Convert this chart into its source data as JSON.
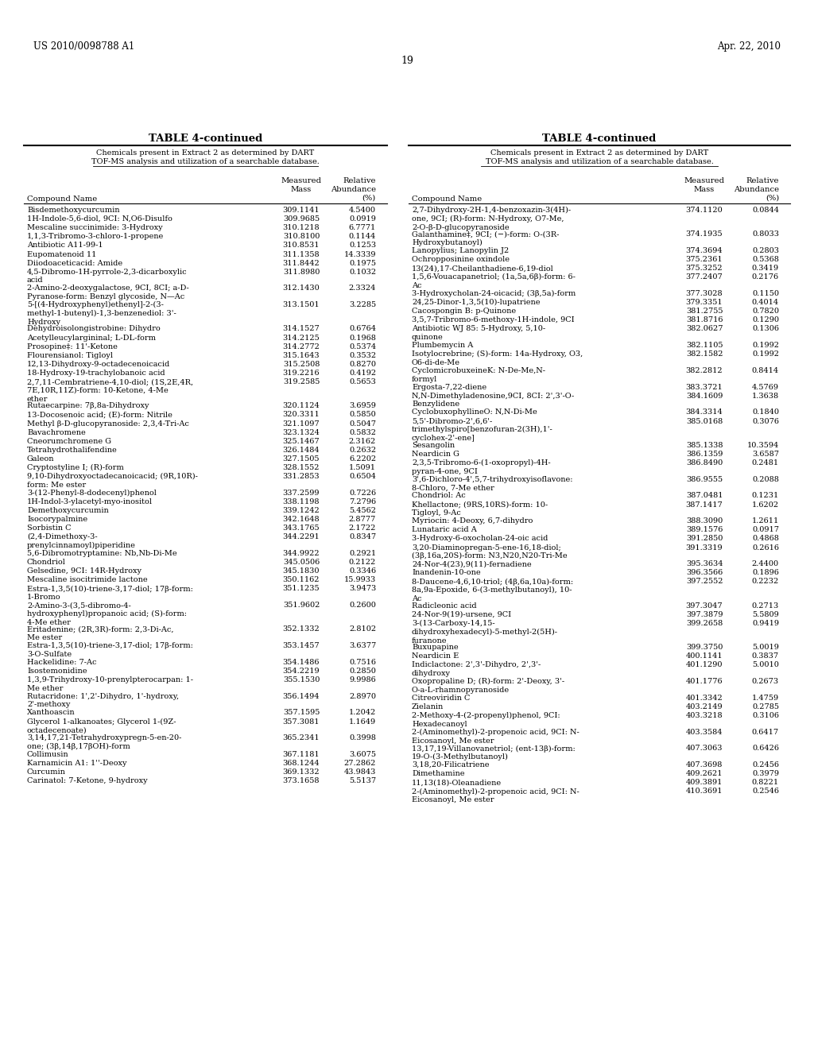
{
  "header_left": "US 2010/0098788 A1",
  "header_right": "Apr. 22, 2010",
  "page_number": "19",
  "table_title": "TABLE 4-continued",
  "table_subtitle_line1": "Chemicals present in Extract 2 as determined by DART",
  "table_subtitle_line2": "TOF-MS analysis and utilization of a searchable database.",
  "left_data": [
    [
      "Bisdemethoxycurcumin",
      "309.1141",
      "4.5400"
    ],
    [
      "1H-Indole-5,6-diol, 9CI: N,O6-Disulfo",
      "309.9685",
      "0.0919"
    ],
    [
      "Mescaline succinimide: 3-Hydroxy",
      "310.1218",
      "6.7771"
    ],
    [
      "1,1,3-Tribromo-3-chloro-1-propene",
      "310.8100",
      "0.1144"
    ],
    [
      "Antibiotic A11-99-1",
      "310.8531",
      "0.1253"
    ],
    [
      "Eupomatenoid 11",
      "311.1358",
      "14.3339"
    ],
    [
      "Diiodoaceticacid: Amide",
      "311.8442",
      "0.1975"
    ],
    [
      "4,5-Dibromo-1H-pyrrole-2,3-dicarboxylic\nacid",
      "311.8980",
      "0.1032"
    ],
    [
      "2-Amino-2-deoxygalactose, 9CI, 8CI; a-D-\nPyranose-form: Benzyl glycoside, N—Ac",
      "312.1430",
      "2.3324"
    ],
    [
      "5-[(4-Hydroxyphenyl)ethenyl]-2-(3-\nmethyl-1-butenyl)-1,3-benzenediol: 3'-\nHydroxy",
      "313.1501",
      "3.2285"
    ],
    [
      "Dehydroisolongistrobine: Dihydro",
      "314.1527",
      "0.6764"
    ],
    [
      "Acetylleucylargininal; L-DL-form",
      "314.2125",
      "0.1968"
    ],
    [
      "Prosopine‡: 11'-Ketone",
      "314.2772",
      "0.5374"
    ],
    [
      "Flourensianol: Tigloyl",
      "315.1643",
      "0.3532"
    ],
    [
      "12,13-Dihydroxy-9-octadecenoicacid",
      "315.2508",
      "0.8270"
    ],
    [
      "18-Hydroxy-19-trachylobanoic acid",
      "319.2216",
      "0.4192"
    ],
    [
      "2,7,11-Cembratriene-4,10-diol; (1S,2E,4R,\n7E,10R,11Z)-form: 10-Ketone, 4-Me\nether",
      "319.2585",
      "0.5653"
    ],
    [
      "Rutaecarpine: 7β,8a-Dihydroxy",
      "320.1124",
      "3.6959"
    ],
    [
      "13-Docosenoic acid; (E)-form: Nitrile",
      "320.3311",
      "0.5850"
    ],
    [
      "Methyl β-D-glucopyranoside: 2,3,4-Tri-Ac",
      "321.1097",
      "0.5047"
    ],
    [
      "Bavachromene",
      "323.1324",
      "0.5832"
    ],
    [
      "Cneorumchromene G",
      "325.1467",
      "2.3162"
    ],
    [
      "Tetrahydrothalifendine",
      "326.1484",
      "0.2632"
    ],
    [
      "Galeon",
      "327.1505",
      "6.2202"
    ],
    [
      "Cryptostyline I; (R)-form",
      "328.1552",
      "1.5091"
    ],
    [
      "9,10-Dihydroxyoctadecanoicacid; (9R,10R)-\nform: Me ester",
      "331.2853",
      "0.6504"
    ],
    [
      "3-(12-Phenyl-8-dodecenyl)phenol",
      "337.2599",
      "0.7226"
    ],
    [
      "1H-Indol-3-ylacetyl-myo-inositol",
      "338.1198",
      "7.2796"
    ],
    [
      "Demethoxycurcumin",
      "339.1242",
      "5.4562"
    ],
    [
      "Isocorypalmine",
      "342.1648",
      "2.8777"
    ],
    [
      "Sorbistin C",
      "343.1765",
      "2.1722"
    ],
    [
      "(2,4-Dimethoxy-3-\nprenylcinnamoyl)piperidine",
      "344.2291",
      "0.8347"
    ],
    [
      "5,6-Dibromotryptamine: Nb,Nb-Di-Me",
      "344.9922",
      "0.2921"
    ],
    [
      "Chondriol",
      "345.0506",
      "0.2122"
    ],
    [
      "Gelsedine, 9CI: 14R-Hydroxy",
      "345.1830",
      "0.3346"
    ],
    [
      "Mescaline isocitrimide lactone",
      "350.1162",
      "15.9933"
    ],
    [
      "Estra-1,3,5(10)-triene-3,17-diol; 17β-form:\n1-Bromo",
      "351.1235",
      "3.9473"
    ],
    [
      "2-Amino-3-(3,5-dibromo-4-\nhydroxyphenyl)propanoic acid; (S)-form:\n4-Me ether",
      "351.9602",
      "0.2600"
    ],
    [
      "Eritadenine; (2R,3R)-form: 2,3-Di-Ac,\nMe ester",
      "352.1332",
      "2.8102"
    ],
    [
      "Estra-1,3,5(10)-triene-3,17-diol; 17β-form:\n3-O-Sulfate",
      "353.1457",
      "3.6377"
    ],
    [
      "Hackelidine: 7-Ac",
      "354.1486",
      "0.7516"
    ],
    [
      "Isostemonidine",
      "354.2219",
      "0.2850"
    ],
    [
      "1,3,9-Trihydroxy-10-prenylpterocarpan: 1-\nMe ether",
      "355.1530",
      "9.9986"
    ],
    [
      "Rutacridone: 1',2'-Dihydro, 1'-hydroxy,\n2'-methoxy",
      "356.1494",
      "2.8970"
    ],
    [
      "Xanthoascin",
      "357.1595",
      "1.2042"
    ],
    [
      "Glycerol 1-alkanoates; Glycerol 1-(9Z-\noctadecenoate)",
      "357.3081",
      "1.1649"
    ],
    [
      "3,14,17,21-Tetrahydroxypregn-5-en-20-\none; (3β,14β,17βOH)-form",
      "365.2341",
      "0.3998"
    ],
    [
      "Collimusin",
      "367.1181",
      "3.6075"
    ],
    [
      "Karnamicin A1: 1''-Deoxy",
      "368.1244",
      "27.2862"
    ],
    [
      "Curcumin",
      "369.1332",
      "43.9843"
    ],
    [
      "Carinatol: 7-Ketone, 9-hydroxy",
      "373.1658",
      "5.5137"
    ]
  ],
  "right_data": [
    [
      "2,7-Dihydroxy-2H-1,4-benzoxazin-3(4H)-\none, 9CI; (R)-form: N-Hydroxy, O7-Me,\n2-O-β-D-glucopyranoside",
      "374.1120",
      "0.0844"
    ],
    [
      "Galanthamine‡, 9CI; (−)-form: O-(3R-\nHydroxybutanoyl)",
      "374.1935",
      "0.8033"
    ],
    [
      "Lanopylius; Lanopylin J2",
      "374.3694",
      "0.2803"
    ],
    [
      "Ochropposinine oxindole",
      "375.2361",
      "0.5368"
    ],
    [
      "13(24),17-Cheilanthadiene-6,19-diol",
      "375.3252",
      "0.3419"
    ],
    [
      "1,5,6-Vouacapanetriol; (1a,5a,6β)-form: 6-\nAc",
      "377.2407",
      "0.2176"
    ],
    [
      "3-Hydroxycholan-24-oicacid; (3β,5a)-form",
      "377.3028",
      "0.1150"
    ],
    [
      "24,25-Dinor-1,3,5(10)-lupatriene",
      "379.3351",
      "0.4014"
    ],
    [
      "Cacospongin B: p-Quinone",
      "381.2755",
      "0.7820"
    ],
    [
      "3,5,7-Tribromo-6-methoxy-1H-indole, 9CI",
      "381.8716",
      "0.1290"
    ],
    [
      "Antibiotic WJ 85: 5-Hydroxy, 5,10-\nquinone",
      "382.0627",
      "0.1306"
    ],
    [
      "Plumbemycin A",
      "382.1105",
      "0.1992"
    ],
    [
      "Isotylocrebrine; (S)-form: 14a-Hydroxy, O3,\nO6-di-de-Me",
      "382.1582",
      "0.1992"
    ],
    [
      "CyclomicrobuxeineK: N-De-Me,N-\nformyl",
      "382.2812",
      "0.8414"
    ],
    [
      "Ergosta-7,22-diene",
      "383.3721",
      "4.5769"
    ],
    [
      "N,N-Dimethyladenosine,9CI, 8CI: 2',3'-O-\nBenzylidene",
      "384.1609",
      "1.3638"
    ],
    [
      "CyclobuxophyllineO: N,N-Di-Me",
      "384.3314",
      "0.1840"
    ],
    [
      "5,5'-Dibromo-2',6,6'-\ntrimethylspiro[benzofuran-2(3H),1'-\ncyclohex-2'-ene]",
      "385.0168",
      "0.3076"
    ],
    [
      "Sesangolin",
      "385.1338",
      "10.3594"
    ],
    [
      "Neardicin G",
      "386.1359",
      "3.6587"
    ],
    [
      "2,3,5-Tribromo-6-(1-oxopropyl)-4H-\npyran-4-one, 9CI",
      "386.8490",
      "0.2481"
    ],
    [
      "3',6-Dichloro-4',5,7-trihydroxyisoflavone:\n8-Chloro, 7-Me ether",
      "386.9555",
      "0.2088"
    ],
    [
      "Chondriol: Ac",
      "387.0481",
      "0.1231"
    ],
    [
      "Khellactone; (9RS,10RS)-form: 10-\nTigloyl, 9-Ac",
      "387.1417",
      "1.6202"
    ],
    [
      "Myriocin: 4-Deoxy, 6,7-dihydro",
      "388.3090",
      "1.2611"
    ],
    [
      "Lunataric acid A",
      "389.1576",
      "0.0917"
    ],
    [
      "3-Hydroxy-6-oxocholan-24-oic acid",
      "391.2850",
      "0.4868"
    ],
    [
      "3,20-Diaminopregan-5-ene-16,18-diol;\n(3β,16a,20S)-form: N3,N20,N20-Tri-Me",
      "391.3319",
      "0.2616"
    ],
    [
      "24-Nor-4(23),9(11)-fernadiene",
      "395.3634",
      "2.4400"
    ],
    [
      "Inandenin-10-one",
      "396.3566",
      "0.1896"
    ],
    [
      "8-Daucene-4,6,10-triol; (4β,6a,10a)-form:\n8a,9a-Epoxide, 6-(3-methylbutanoyl), 10-\nAc",
      "397.2552",
      "0.2232"
    ],
    [
      "Radicleonic acid",
      "397.3047",
      "0.2713"
    ],
    [
      "24-Nor-9(19)-ursene, 9CI",
      "397.3879",
      "5.5809"
    ],
    [
      "3-(13-Carboxy-14,15-\ndihydroxyhexadecyl)-5-methyl-2(5H)-\nfuranone",
      "399.2658",
      "0.9419"
    ],
    [
      "Buxupapine",
      "399.3750",
      "5.0019"
    ],
    [
      "Neardicin E",
      "400.1141",
      "0.3837"
    ],
    [
      "Indiclactone: 2',3'-Dihydro, 2',3'-\ndihydroxy",
      "401.1290",
      "5.0010"
    ],
    [
      "Oxopropaline D; (R)-form: 2'-Deoxy, 3'-\nO-a-L-rhamnopyranoside",
      "401.1776",
      "0.2673"
    ],
    [
      "Citreoviridin C",
      "401.3342",
      "1.4759"
    ],
    [
      "Zielanin",
      "403.2149",
      "0.2785"
    ],
    [
      "2-Methoxy-4-(2-propenyl)phenol, 9CI:\nHexadecanoyl",
      "403.3218",
      "0.3106"
    ],
    [
      "2-(Aminomethyl)-2-propenoic acid, 9CI: N-\nEicosanoyl, Me ester",
      "403.3584",
      "0.6417"
    ],
    [
      "13,17,19-Villanovanetriol; (ent-13β)-form:\n19-O-(3-Methylbutanoyl)",
      "407.3063",
      "0.6426"
    ],
    [
      "3,18,20-Filicatriene",
      "407.3698",
      "0.2456"
    ],
    [
      "Dimethamine",
      "409.2621",
      "0.3979"
    ],
    [
      "11,13(18)-Oleanadiene",
      "409.3891",
      "0.8221"
    ],
    [
      "2-(Aminomethyl)-2-propenoic acid, 9CI: N-\nEicosanoyl, Me ester",
      "410.3691",
      "0.2546"
    ]
  ]
}
